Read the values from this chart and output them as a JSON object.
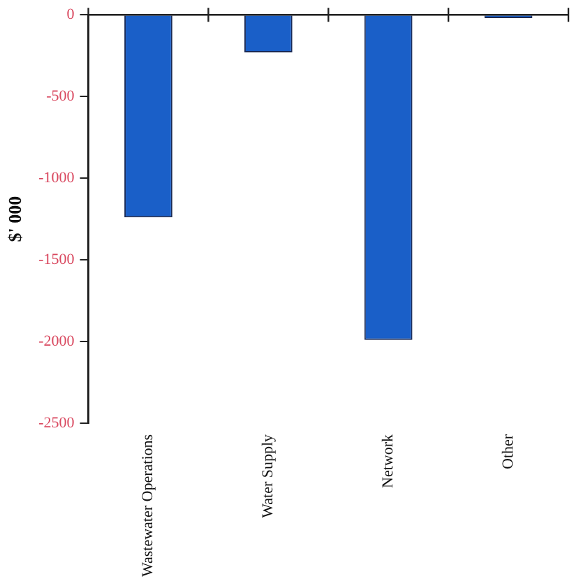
{
  "chart_data": {
    "type": "bar",
    "ylabel": "$' 000",
    "categories": [
      "Wastewater Operations",
      "Water Supply",
      "Network",
      "Other"
    ],
    "values": [
      -1240,
      -230,
      -1990,
      -20
    ],
    "color": "#1a5fc8",
    "ylim": [
      -2500,
      0
    ],
    "yticks": [
      -2500,
      -2000,
      -1500,
      -1000,
      -500,
      0
    ],
    "grid": false,
    "legend": false
  }
}
